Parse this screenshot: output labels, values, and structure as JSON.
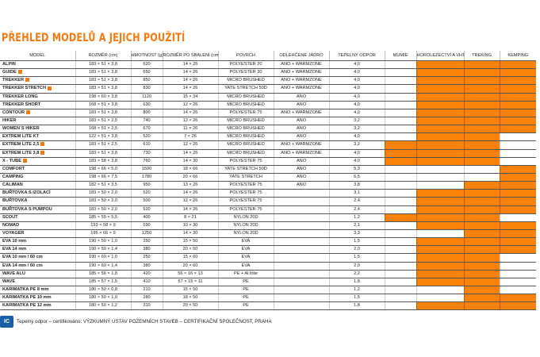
{
  "title": "PŘEHLED MODELŮ A JEJICH POUŽITÍ",
  "columns": [
    "MODEL",
    "ROZMĚR (cm)",
    "HMOTNOST (g)",
    "ROZMĚR PO SBALENÍ (cm)",
    "POVRCH",
    "ODLEHČENÉ JÁDRO",
    "TEPELNÝ ODPOR",
    "MUMIE",
    "HOROLEZECTVÍ A VHT",
    "TREKING",
    "KEMPING"
  ],
  "usage_fill_color": "#fb8209",
  "rows": [
    {
      "model": "ALPIN",
      "badge": false,
      "size": "183 × 51 × 3,8",
      "weight": "620",
      "packed": "14 × 26",
      "surface": "POLYESTER 20",
      "core": "ANO + WARMZONE",
      "r": "4,0",
      "use": [
        0,
        1,
        1,
        1
      ]
    },
    {
      "model": "GUIDE",
      "badge": true,
      "size": "183 × 51 × 3,8",
      "weight": "650",
      "packed": "14 × 26",
      "surface": "POLYESTER 30",
      "core": "ANO + WARMZONE",
      "r": "4,0",
      "use": [
        0,
        1,
        1,
        1
      ]
    },
    {
      "model": "TREKKER",
      "badge": true,
      "size": "183 × 51 × 3,8",
      "weight": "850",
      "packed": "14 × 26",
      "surface": "MICRO BRUSHED",
      "core": "ANO + WARMZONE",
      "r": "4,0",
      "use": [
        0,
        1,
        1,
        1
      ]
    },
    {
      "model": "TREKKER STRETCH",
      "badge": true,
      "size": "183 × 51 × 3,8",
      "weight": "830",
      "packed": "14 × 26",
      "surface": "YATE STRETCH 50D",
      "core": "ANO + WARMZONE",
      "r": "4,0",
      "use": [
        0,
        1,
        1,
        1
      ]
    },
    {
      "model": "TREKKER LONG",
      "badge": false,
      "size": "198 × 60 × 3,8",
      "weight": "1120",
      "packed": "15 × 34",
      "surface": "MICRO BRUSHED",
      "core": "ANO",
      "r": "4,0",
      "use": [
        0,
        1,
        1,
        1
      ]
    },
    {
      "model": "TREKKER SHORT",
      "badge": false,
      "size": "168 × 51 × 3,8",
      "weight": "630",
      "packed": "12 × 26",
      "surface": "MICRO BRUSHED",
      "core": "ANO",
      "r": "4,0",
      "use": [
        0,
        1,
        1,
        1
      ]
    },
    {
      "model": "CONTOUR",
      "badge": true,
      "size": "183 × 51 × 3,8",
      "weight": "800",
      "packed": "14 × 26",
      "surface": "POLYESTER 75",
      "core": "ANO + WARMZONE",
      "r": "4,0",
      "use": [
        0,
        1,
        1,
        1
      ]
    },
    {
      "model": "HIKER",
      "badge": false,
      "size": "183 × 51 × 2,5",
      "weight": "740",
      "packed": "13 × 26",
      "surface": "MICRO BRUSHED",
      "core": "ANO",
      "r": "3,2",
      "use": [
        0,
        1,
        1,
        1
      ]
    },
    {
      "model": "WOMEN´S HIKER",
      "badge": false,
      "size": "168 × 51 × 2,5",
      "weight": "670",
      "packed": "11 × 26",
      "surface": "MICRO BRUSHED",
      "core": "ANO",
      "r": "3,2",
      "use": [
        0,
        1,
        1,
        1
      ]
    },
    {
      "model": "EXTREM LITE KT",
      "badge": false,
      "size": "122 × 51 × 3,8",
      "weight": "520",
      "packed": "7 × 26",
      "surface": "MICRO BRUSHED",
      "core": "ANO",
      "r": "4,0",
      "use": [
        0,
        1,
        1,
        0
      ]
    },
    {
      "model": "EXTREM LITE 2,5",
      "badge": true,
      "size": "183 × 51 × 2,5",
      "weight": "610",
      "packed": "12 × 26",
      "surface": "MICRO BRUSHED",
      "core": "ANO + WARMZONE",
      "r": "3,2",
      "use": [
        1,
        1,
        1,
        0
      ]
    },
    {
      "model": "EXTREM LITE 3,8",
      "badge": true,
      "size": "183 × 51 × 3,8",
      "weight": "730",
      "packed": "14 × 26",
      "surface": "MICRO BRUSHED",
      "core": "ANO + WARMZONE",
      "r": "4,0",
      "use": [
        1,
        1,
        1,
        0
      ]
    },
    {
      "model": "X - TUBE",
      "badge": true,
      "size": "183 × 58 × 3,8",
      "weight": "760",
      "packed": "14 × 30",
      "surface": "POLYESTER 75",
      "core": "ANO",
      "r": "4,0",
      "use": [
        1,
        1,
        1,
        0
      ]
    },
    {
      "model": "COMFORT",
      "badge": false,
      "size": "198 × 66 × 5,0",
      "weight": "1500",
      "packed": "18 × 66",
      "surface": "YATE STRETCH 50D",
      "core": "ANO",
      "r": "5,3",
      "use": [
        0,
        0,
        0,
        1
      ]
    },
    {
      "model": "CAMPING",
      "badge": false,
      "size": "198 × 66 × 7,5",
      "weight": "1780",
      "packed": "20 × 66",
      "surface": "YATE STRETCH",
      "core": "ANO",
      "r": "6,5",
      "use": [
        0,
        0,
        0,
        1
      ]
    },
    {
      "model": "CALIMAN",
      "badge": false,
      "size": "182 × 51 × 3,5",
      "weight": "950",
      "packed": "13 × 26",
      "surface": "POLYESTER 75",
      "core": "ANO",
      "r": "3,8",
      "use": [
        0,
        0,
        1,
        1
      ]
    },
    {
      "model": "BUŘTOVKA S IZOLACÍ",
      "badge": false,
      "size": "183 × 50 × 2,0",
      "weight": "520",
      "packed": "14 × 26",
      "surface": "POLYESTER 75",
      "core": "",
      "r": "3,1",
      "use": [
        0,
        1,
        1,
        1
      ]
    },
    {
      "model": "BUŘTOVKA",
      "badge": false,
      "size": "183 × 50 × 2,0",
      "weight": "500",
      "packed": "12 × 26",
      "surface": "POLYESTER 75",
      "core": "",
      "r": "2,4",
      "use": [
        0,
        1,
        1,
        1
      ]
    },
    {
      "model": "BUŘTOVKA S PUMPOU",
      "badge": false,
      "size": "183 × 50 × 2,0",
      "weight": "520",
      "packed": "14 × 26",
      "surface": "POLYESTER 75",
      "core": "",
      "r": "2,4",
      "use": [
        0,
        1,
        1,
        1
      ]
    },
    {
      "model": "SCOUT",
      "badge": false,
      "size": "185 × 55 × 5,5",
      "weight": "400",
      "packed": "8 × 21",
      "surface": "NYLON 20D",
      "core": "",
      "r": "1,2",
      "use": [
        1,
        1,
        1,
        0
      ]
    },
    {
      "model": "NOMAD",
      "badge": false,
      "size": "193 × 58 × 9",
      "weight": "590",
      "packed": "10 × 30",
      "surface": "NYLON 20D",
      "core": "",
      "r": "2,1",
      "use": [
        0,
        1,
        1,
        1
      ]
    },
    {
      "model": "VOYAGER",
      "badge": false,
      "size": "195 × 66 × 9",
      "weight": "1250",
      "packed": "14 × 30",
      "surface": "NYLON 20D",
      "core": "",
      "r": "3,3",
      "use": [
        0,
        0,
        1,
        1
      ]
    },
    {
      "model": "EVA 10 mm",
      "badge": false,
      "size": "190 × 50 × 1,0",
      "weight": "250",
      "packed": "15 × 50",
      "surface": "EVA",
      "core": "",
      "r": "1,5",
      "use": [
        0,
        1,
        1,
        1
      ]
    },
    {
      "model": "EVA 14 mm",
      "badge": false,
      "size": "190 × 50 × 1,4",
      "weight": "380",
      "packed": "20 × 50",
      "surface": "EVA",
      "core": "",
      "r": "2,0",
      "use": [
        0,
        1,
        1,
        1
      ]
    },
    {
      "model": "EVA 10 mm / 60 cm",
      "badge": false,
      "size": "190 × 60 × 1,0",
      "weight": "250",
      "packed": "15 × 60",
      "surface": "EVA",
      "core": "",
      "r": "1,5",
      "use": [
        0,
        1,
        1,
        0
      ]
    },
    {
      "model": "EVA 14 mm / 60 cm",
      "badge": false,
      "size": "190 × 60 × 1,4",
      "weight": "380",
      "packed": "20 × 60",
      "surface": "EVA",
      "core": "",
      "r": "2,0",
      "use": [
        0,
        1,
        1,
        0
      ]
    },
    {
      "model": "WAVE ALU",
      "badge": false,
      "size": "185 × 56 × 1,8",
      "weight": "420",
      "packed": "56 × 16 × 13",
      "surface": "PE + Al fólie",
      "core": "",
      "r": "2,2",
      "use": [
        0,
        1,
        1,
        0
      ]
    },
    {
      "model": "WAVE",
      "badge": false,
      "size": "185 × 57 × 1,5",
      "weight": "410",
      "packed": "57 × 15 × 11",
      "surface": "PE",
      "core": "",
      "r": "1,8",
      "use": [
        0,
        1,
        1,
        0
      ]
    },
    {
      "model": "KARIMATKA PE 8 mm",
      "badge": false,
      "size": "180 × 50 × 0,8",
      "weight": "210",
      "packed": "15 × 50",
      "surface": "PE",
      "core": "",
      "r": "1,2",
      "use": [
        0,
        0,
        1,
        0
      ]
    },
    {
      "model": "KARIMATKA PE 10 mm",
      "badge": false,
      "size": "180 × 50 × 1,0",
      "weight": "280",
      "packed": "18 × 50",
      "surface": "PE",
      "core": "",
      "r": "1,5",
      "use": [
        0,
        0,
        1,
        1
      ]
    },
    {
      "model": "KARIMATKA PE 12 mm",
      "badge": false,
      "size": "180 × 50 × 1,2",
      "weight": "310",
      "packed": "20 × 50",
      "surface": "PE",
      "core": "",
      "r": "1,8",
      "use": [
        0,
        1,
        1,
        1
      ]
    }
  ],
  "footer": {
    "logo_text": "IC",
    "note": "Tepelný odpor – certifikováno: VÝZKUMNÝ ÚSTAV POZEMNÍCH STAVEB – CERTIFIKAČNÍ SPOLEČNOST, PRAHA"
  }
}
